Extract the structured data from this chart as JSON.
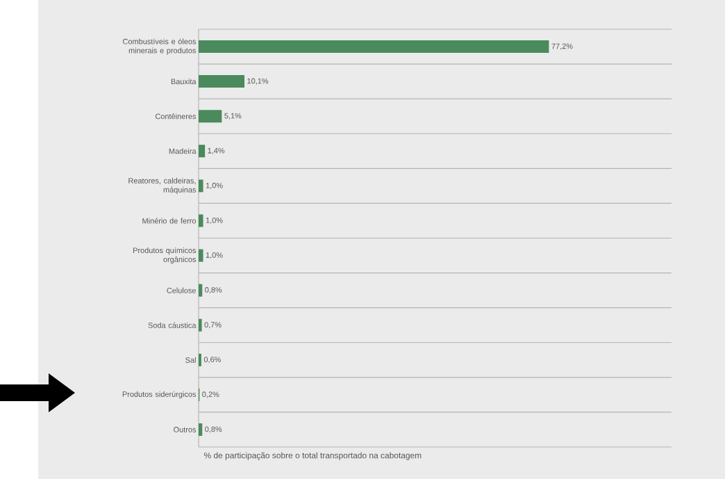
{
  "chart_data": {
    "type": "bar",
    "orientation": "horizontal",
    "categories": [
      "Combustíveis e óleos minerais e produtos",
      "Bauxita",
      "Contêineres",
      "Madeira",
      "Reatores, caldeiras, máquinas",
      "Minério de ferro",
      "Produtos químicos orgânicos",
      "Celulose",
      "Soda cáustica",
      "Sal",
      "Produtos siderúrgicos",
      "Outros"
    ],
    "values": [
      77.2,
      10.1,
      5.1,
      1.4,
      1.0,
      1.0,
      1.0,
      0.8,
      0.7,
      0.6,
      0.2,
      0.8
    ],
    "value_labels": [
      "77,2%",
      "10,1%",
      "5,1%",
      "1,4%",
      "1,0%",
      "1,0%",
      "1,0%",
      "0,8%",
      "0,7%",
      "0,6%",
      "0,2%",
      "0,8%"
    ],
    "color": "#4a8a5c",
    "xlabel": "% de participação sobre o total transportado na cabotagem",
    "grid": "y"
  }
}
